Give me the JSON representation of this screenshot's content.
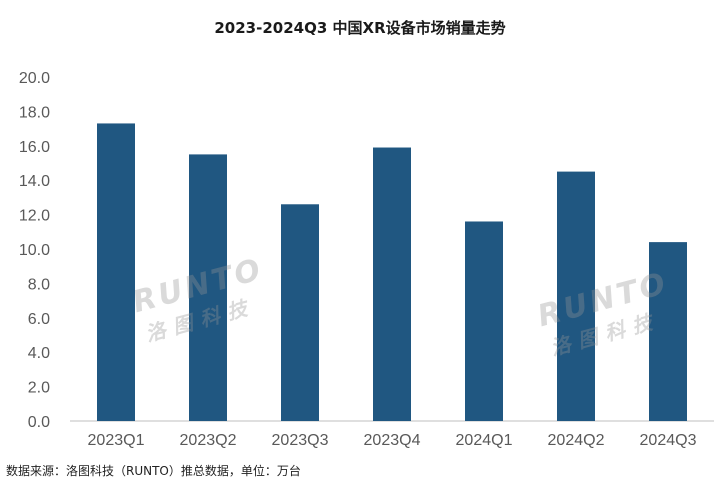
{
  "title": "2023-2024Q3 中国XR设备市场销量走势",
  "source_note": "数据来源：洛图科技（RUNTO）推总数据，单位：万台",
  "watermark": {
    "text": "RUNTO",
    "subtext": "洛图科技"
  },
  "colors": {
    "bar": "#205781",
    "axis_text": "#595959",
    "axis_line": "#bfbfbf"
  },
  "chart_data": {
    "type": "bar",
    "title": "2023-2024Q3 中国XR设备市场销量走势",
    "categories": [
      "2023Q1",
      "2023Q2",
      "2023Q3",
      "2023Q4",
      "2024Q1",
      "2024Q2",
      "2024Q3"
    ],
    "values": [
      17.3,
      15.5,
      12.6,
      15.9,
      11.6,
      14.5,
      10.4
    ],
    "ylim": [
      0,
      20
    ],
    "yticks": [
      "0.0",
      "2.0",
      "4.0",
      "6.0",
      "8.0",
      "10.0",
      "12.0",
      "14.0",
      "16.0",
      "18.0",
      "20.0"
    ],
    "unit": "万台",
    "grid": false,
    "legend": "none"
  }
}
